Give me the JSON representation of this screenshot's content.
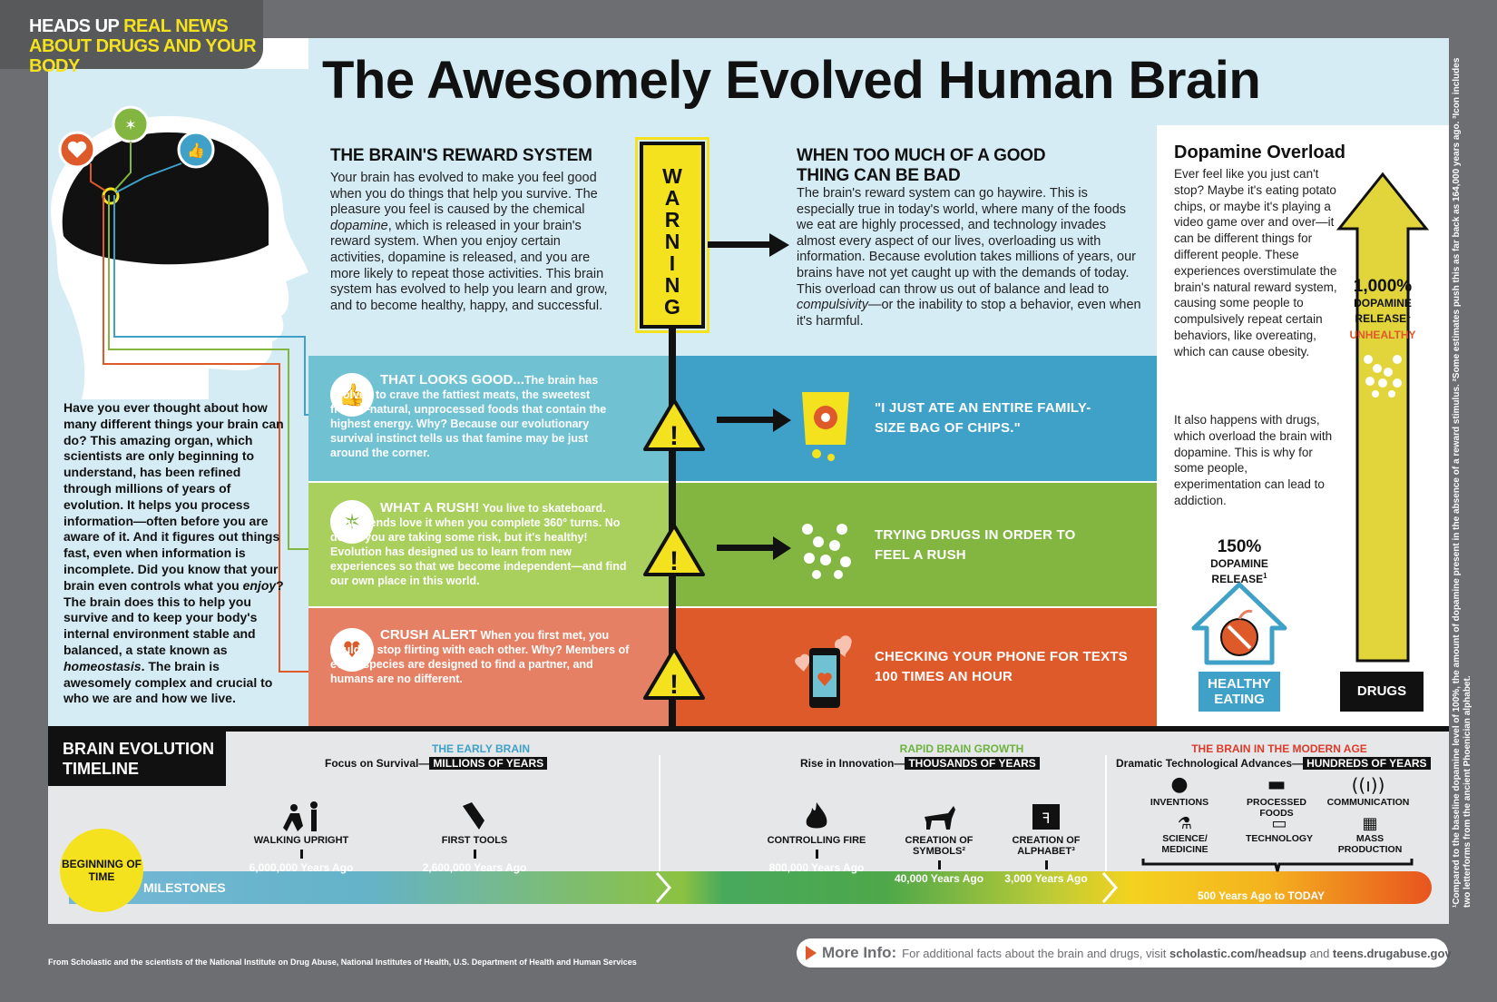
{
  "masthead": {
    "line1_a": "HEADS UP",
    "line1_b": "REAL NEWS",
    "line2": "ABOUT DRUGS AND YOUR BODY"
  },
  "title": "The Awesomely  Evolved Human Brain",
  "intro": {
    "p1": "Have you ever thought about how many different things your brain can do? This amazing organ, which scientists are only beginning to understand, has been refined through millions of years of evolution. It helps you process information—often before you are aware of it. And it figures out things fast, even when information is incomplete. Did you know that your brain even controls what you ",
    "em1": "enjoy",
    "p2": "? The brain does this to help you survive and to keep your body's internal environment stable and balanced, a state known as ",
    "em2": "homeostasis",
    "p3": ". The brain is awesomely complex and crucial to who we are and how we live."
  },
  "reward": {
    "heading": "THE BRAIN'S REWARD SYSTEM",
    "b1": "Your brain has evolved to make you feel good when you do things that help you survive. The pleasure you feel is caused by the chemical ",
    "em": "dopamine",
    "b2": ", which is released in your brain's reward system. When you enjoy certain activities, dopamine is released, and you are more likely to repeat those activities. This brain system has evolved to help you learn and grow, and to become healthy, happy, and successful."
  },
  "warning": [
    "W",
    "A",
    "R",
    "N",
    "I",
    "N",
    "G"
  ],
  "toomuch": {
    "heading": "WHEN TOO MUCH OF A GOOD THING CAN BE BAD",
    "b1": "The brain's reward system can go haywire. This is especially true in today's world, where many of the foods we eat are highly processed, and technology invades almost every aspect of our lives, overloading us with information. Because evolution takes millions of years, our brains have not yet caught up with the demands of today. This overload can throw us out of balance and lead to ",
    "em": "compulsivity",
    "b2": "—or the inability to stop a behavior, even when it's harmful."
  },
  "rows": [
    {
      "heading": "THAT LOOKS GOOD...",
      "body": "The brain has evolved to crave the fattiest meats, the sweetest fruits—natural, unprocessed foods that contain the highest energy. Why? Because our evolutionary survival instinct tells us that famine may be just around the corner.",
      "callout": "\"I JUST ATE AN ENTIRE FAMILY-SIZE BAG OF CHIPS.\""
    },
    {
      "heading": "WHAT A RUSH!",
      "body": "You live to skateboard. Your friends love it when you complete 360° turns. No doubt you are taking some risk, but it's healthy! Evolution has designed us to learn from new experiences so that we become independent—and find our own place in this world.",
      "callout": "TRYING DRUGS IN ORDER TO FEEL A RUSH"
    },
    {
      "heading": "CRUSH ALERT",
      "body": "When you first met, you couldn't stop flirting with each other. Why? Members of every species are designed to find a partner, and humans are no different.",
      "callout": "CHECKING YOUR PHONE FOR TEXTS 100 TIMES AN HOUR"
    }
  ],
  "dopamine": {
    "heading": "Dopamine Overload",
    "body1": "Ever feel like you just can't stop? Maybe it's eating potato chips, or maybe it's playing a video game over and over—it can be different things for different people. These experiences overstimulate the brain's natural reward system, causing some people to compulsively repeat certain behaviors, like overeating, which can cause obesity.",
    "body2": "It also happens with drugs, which overload the brain with dopamine. This is why for some people, experimentation can lead to addiction.",
    "healthy_pct": "150%",
    "healthy_release": "DOPAMINE RELEASE",
    "healthy_label": "HEALTHY EATING",
    "drugs_pct": "1,000%",
    "drugs_release": "DOPAMINE RELEASE",
    "unhealthy": "UNHEALTHY",
    "drugs_label": "DRUGS",
    "sup": "1"
  },
  "timeline": {
    "title": "BRAIN EVOLUTION TIMELINE",
    "beginning": "BEGINNING OF TIME",
    "milestones_label": "MILESTONES",
    "eras": [
      {
        "title": "THE EARLY BRAIN",
        "sub": "Focus on Survival—",
        "pill": "MILLIONS OF YEARS",
        "color": "#3fa0c8"
      },
      {
        "title": "RAPID BRAIN GROWTH",
        "sub": "Rise in Innovation—",
        "pill": "THOUSANDS OF YEARS",
        "color": "#6cb33f"
      },
      {
        "title": "THE BRAIN IN THE MODERN AGE",
        "sub": "Dramatic Technological Advances—",
        "pill": "HUNDREDS OF YEARS",
        "color": "#de3b2b"
      }
    ],
    "milestones": [
      {
        "name": "WALKING UPRIGHT",
        "year": "6,000,000 Years Ago"
      },
      {
        "name": "FIRST TOOLS",
        "year": "2,600,000 Years Ago"
      },
      {
        "name": "CONTROLLING FIRE",
        "year": "800,000 Years Ago"
      },
      {
        "name": "CREATION OF SYMBOLS²",
        "year": "40,000 Years Ago"
      },
      {
        "name": "CREATION OF ALPHABET³",
        "year": "3,000 Years Ago"
      }
    ],
    "modern": [
      "INVENTIONS",
      "PROCESSED FOODS",
      "COMMUNICATION",
      "SCIENCE/ MEDICINE",
      "TECHNOLOGY",
      "MASS PRODUCTION"
    ],
    "today": "500 Years Ago to TODAY"
  },
  "sidenote": "¹Compared to the baseline dopamine level of 100%, the amount of dopamine present in the absence of a reward stimulus. ²Some estimates push this as far back as 164,000 years ago. ³Icon includes two letterforms from the ancient Phoenician alphabet.",
  "credit": "From Scholastic and the scientists of the National Institute on Drug Abuse, National Institutes of Health, U.S. Department of Health and Human Services",
  "moreinfo": {
    "label": "More Info:",
    "text": "For additional facts about the brain and drugs, visit ",
    "link1": "scholastic.com/headsup",
    "and": " and ",
    "link2": "teens.drugabuse.gov",
    "end": "."
  },
  "colors": {
    "blue": "#3fa0c8",
    "green": "#82b641",
    "orange": "#de5a2b",
    "yellow": "#f4e21f"
  }
}
